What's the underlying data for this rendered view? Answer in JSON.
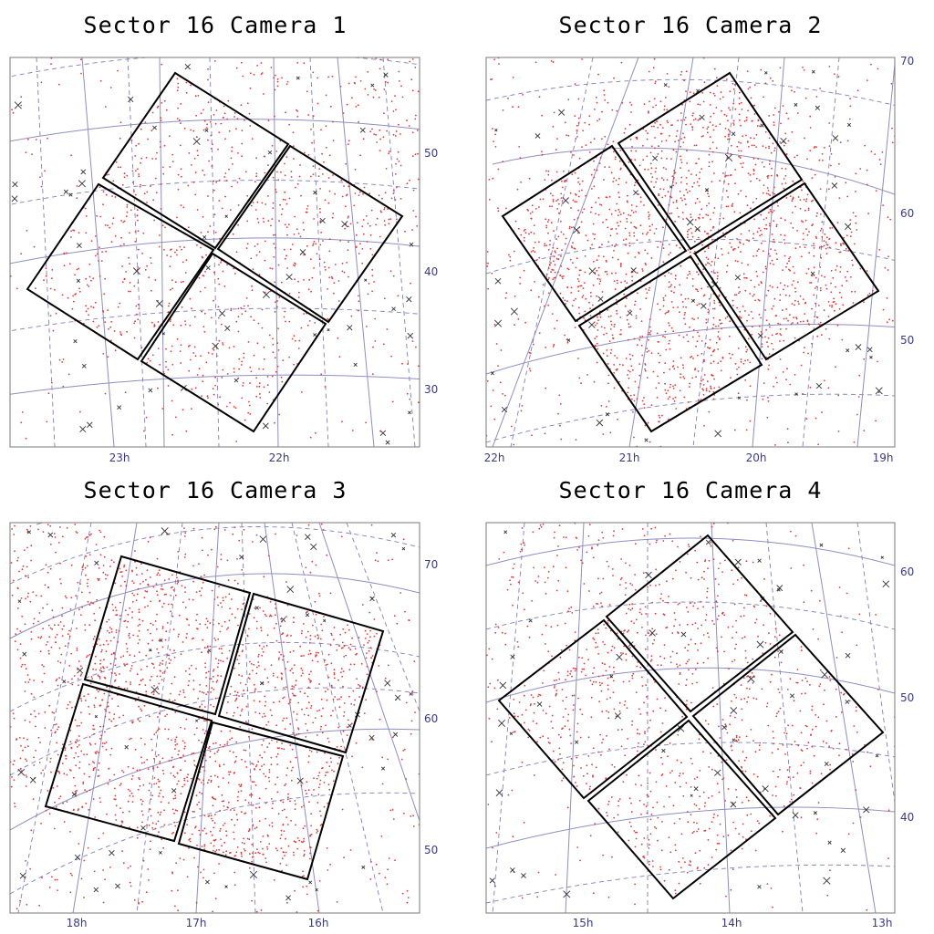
{
  "figure": {
    "panels": [
      {
        "title": "Sector 16 Camera 1",
        "dec_labels": [
          "50",
          "40",
          "30"
        ],
        "ra_labels": [
          "23h",
          "22h"
        ],
        "star_density": 2600,
        "colors": {
          "stars": "#e23a3a",
          "ccd": "#000000",
          "grid": "#8e8ec4",
          "labels": "#3a3a8c"
        }
      },
      {
        "title": "Sector 16 Camera 2",
        "dec_labels": [
          "70",
          "60",
          "50"
        ],
        "ra_labels": [
          "22h",
          "21h",
          "20h",
          "19h"
        ],
        "star_density": 3600,
        "colors": {
          "stars": "#e23a3a",
          "ccd": "#000000",
          "grid": "#8e8ec4",
          "labels": "#3a3a8c"
        }
      },
      {
        "title": "Sector 16 Camera 3",
        "dec_labels": [
          "70",
          "60",
          "50"
        ],
        "ra_labels": [
          "18h",
          "17h",
          "16h"
        ],
        "star_density": 4600,
        "colors": {
          "stars": "#e23a3a",
          "ccd": "#000000",
          "grid": "#8e8ec4",
          "labels": "#3a3a8c"
        }
      },
      {
        "title": "Sector 16 Camera 4",
        "dec_labels": [
          "60",
          "50",
          "40"
        ],
        "ra_labels": [
          "15h",
          "14h",
          "13h"
        ],
        "star_density": 2600,
        "colors": {
          "stars": "#e23a3a",
          "ccd": "#000000",
          "grid": "#8e8ec4",
          "labels": "#3a3a8c"
        }
      }
    ]
  }
}
